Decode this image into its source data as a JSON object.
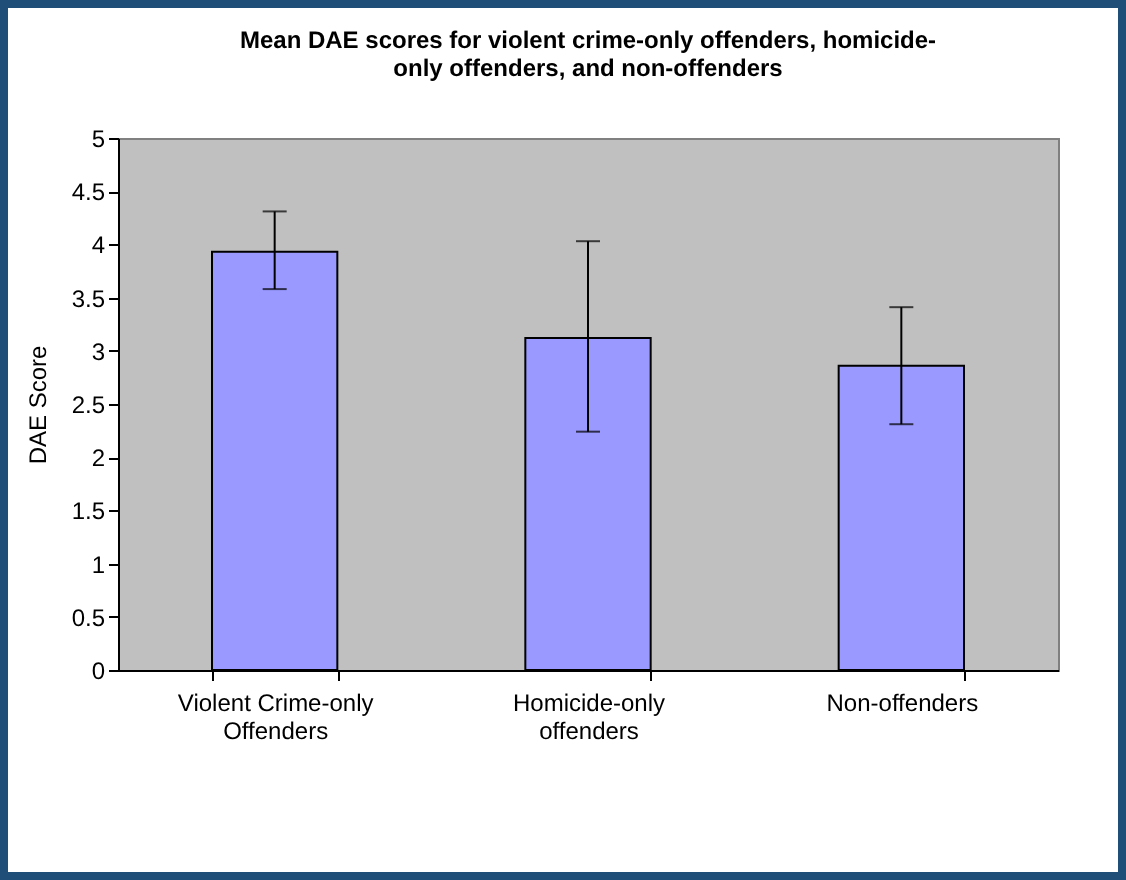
{
  "chart_data": {
    "type": "bar",
    "title": "Mean DAE scores for violent crime-only offenders, homicide-only offenders, and non-offenders",
    "ylabel": "DAE Score",
    "categories": [
      "Violent Crime-only Offenders",
      "Homicide-only offenders",
      "Non-offenders"
    ],
    "values": [
      3.93,
      3.12,
      2.86
    ],
    "errors": [
      [
        3.58,
        4.31
      ],
      [
        2.24,
        4.03
      ],
      [
        2.31,
        3.41
      ]
    ],
    "color": "#9999ff",
    "ylim": [
      0,
      5
    ],
    "yticks": [
      0,
      0.5,
      1,
      1.5,
      2,
      2.5,
      3,
      3.5,
      4,
      4.5,
      5
    ],
    "grid": false
  }
}
